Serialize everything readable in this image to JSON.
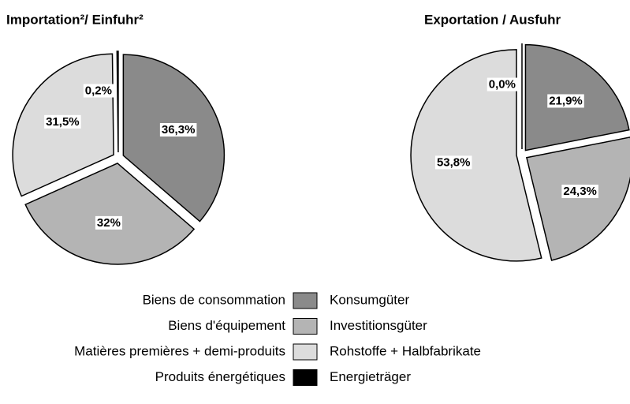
{
  "chart_data": [
    {
      "type": "pie",
      "title": "Importation²/ Einfuhr²",
      "values": [
        36.3,
        32,
        31.5,
        0.2
      ],
      "value_labels": [
        "36,3%",
        "32%",
        "31,5%",
        "0,2%"
      ],
      "colors": [
        "#8a8a8a",
        "#b4b4b4",
        "#dcdcdc",
        "#000000"
      ]
    },
    {
      "type": "pie",
      "title": "Exportation  / Ausfuhr",
      "values": [
        21.9,
        24.3,
        53.8,
        0.0
      ],
      "value_labels": [
        "21,9%",
        "24,3%",
        "53,8%",
        "0,0%"
      ],
      "colors": [
        "#8a8a8a",
        "#b4b4b4",
        "#dcdcdc",
        "#000000"
      ]
    }
  ],
  "legend": {
    "items": [
      {
        "label_fr": "Biens de consommation",
        "label_de": "Konsumgüter",
        "color": "#8a8a8a"
      },
      {
        "label_fr": "Biens d'équipement",
        "label_de": "Investitionsgüter",
        "color": "#b4b4b4"
      },
      {
        "label_fr": "Matières premières + demi-produits",
        "label_de": "Rohstoffe + Halbfabrikate",
        "color": "#dcdcdc"
      },
      {
        "label_fr": "Produits énergétiques",
        "label_de": "Energieträger",
        "color": "#000000"
      }
    ]
  }
}
